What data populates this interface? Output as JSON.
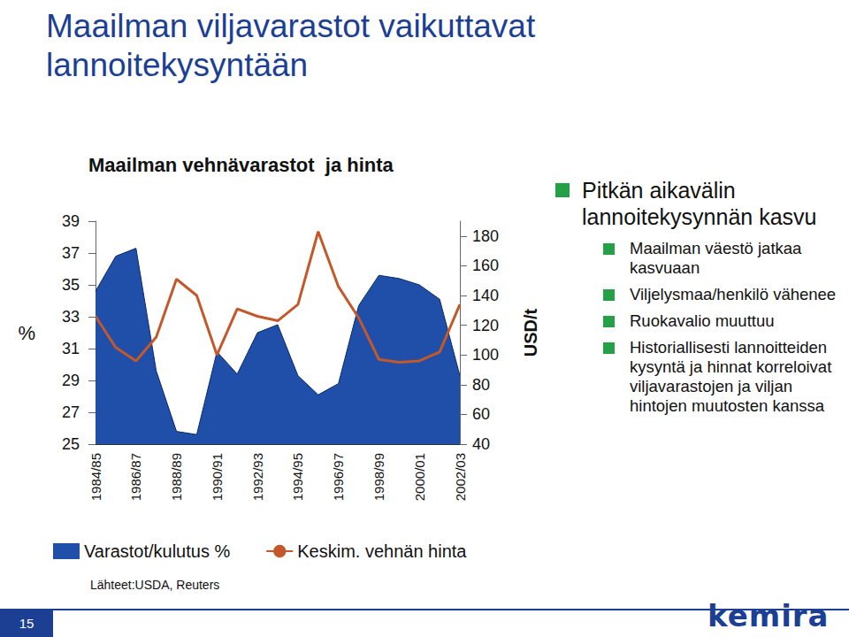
{
  "slide": {
    "title": "Maailman viljavarastot vaikuttavat lannoitekysyntään",
    "bullets": {
      "heading": "Pitkän aikavälin lannoitekysynnän kasvu",
      "items": [
        "Maailman väestö jatkaa kasvuaan",
        "Viljelysmaa/henkilö vähenee",
        "Ruokavalio muuttuu",
        "Historiallisesti lannoitteiden kysyntä ja hinnat korreloivat viljavarastojen ja viljan hintojen muutosten kanssa"
      ]
    },
    "source": "Lähteet:USDA, Reuters",
    "page": 15,
    "logo": "kemira"
  },
  "chart_data": {
    "type": "combo",
    "title": "Maailman vehnävarastot  ja hinta",
    "categories": [
      "1984/85",
      null,
      "1986/87",
      null,
      "1988/89",
      null,
      "1990/91",
      null,
      "1992/93",
      null,
      "1994/95",
      null,
      "1996/97",
      null,
      "1998/99",
      null,
      "2000/01",
      null,
      "2002/03"
    ],
    "series": [
      {
        "name": "Varastot/kulutus %",
        "type": "area",
        "color": "#1f4fa8",
        "values": [
          34.6,
          36.8,
          37.3,
          29.6,
          25.8,
          25.6,
          30.8,
          29.4,
          32.0,
          32.5,
          29.3,
          28.1,
          28.8,
          33.7,
          35.6,
          35.4,
          35.0,
          34.1,
          29.3
        ]
      },
      {
        "name": "Keskim. vehnän hinta",
        "type": "line",
        "axis": "y2",
        "color": "#c4582a",
        "values": [
          126,
          105,
          96,
          112,
          151,
          140,
          100,
          131,
          126,
          123,
          134,
          183,
          146,
          125,
          97,
          95,
          96,
          102,
          134
        ]
      }
    ],
    "y_label": "%",
    "y2_label": "USD/t",
    "ylim": [
      25,
      39
    ],
    "yticks": [
      25,
      27,
      29,
      31,
      33,
      35,
      37,
      39
    ],
    "y2lim": [
      40,
      190
    ],
    "y2ticks": [
      40,
      60,
      80,
      100,
      120,
      140,
      160,
      180
    ],
    "grid": false,
    "legend": "bottom"
  }
}
